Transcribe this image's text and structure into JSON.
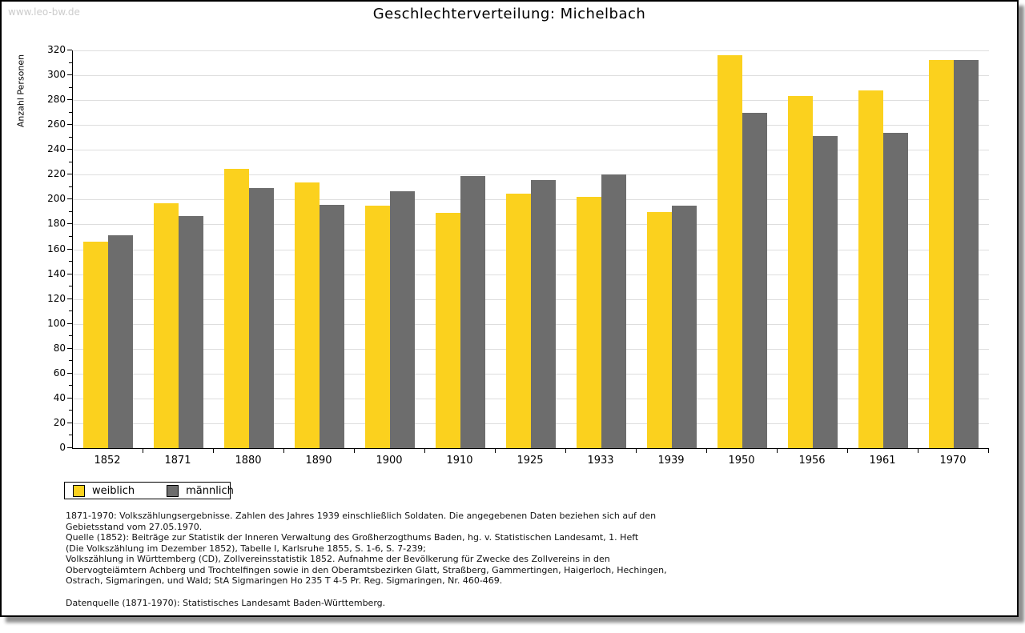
{
  "watermark": "www.leo-bw.de",
  "chart_data": {
    "type": "bar",
    "title": "Geschlechterverteilung: Michelbach",
    "xlabel": "",
    "ylabel": "Anzahl Personen",
    "ylim": [
      0,
      320
    ],
    "ytick_step": 20,
    "ytick_minor_step": 10,
    "grid": true,
    "legend_position": "bottom-left",
    "categories": [
      "1852",
      "1871",
      "1880",
      "1890",
      "1900",
      "1910",
      "1925",
      "1933",
      "1939",
      "1950",
      "1956",
      "1961",
      "1970"
    ],
    "series": [
      {
        "name": "weiblich",
        "color": "#fbd11e",
        "values": [
          166,
          197,
          225,
          214,
          195,
          189,
          205,
          202,
          190,
          316,
          283,
          288,
          312
        ]
      },
      {
        "name": "männlich",
        "color": "#6d6d6d",
        "values": [
          171,
          187,
          209,
          196,
          207,
          219,
          216,
          220,
          195,
          270,
          251,
          254,
          312
        ]
      }
    ],
    "colors": {
      "gridline": "#dedede",
      "axis": "#000000"
    }
  },
  "footnote_lines": [
    "1871-1970: Volkszählungsergebnisse. Zahlen des Jahres 1939 einschließlich Soldaten. Die angegebenen Daten beziehen sich auf den",
    "Gebietsstand vom 27.05.1970.",
    "Quelle (1852): Beiträge zur Statistik der Inneren Verwaltung des Großherzogthums Baden, hg. v. Statistischen Landesamt, 1. Heft",
    "(Die Volkszählung im Dezember 1852), Tabelle I, Karlsruhe 1855, S. 1-6, S. 7-239;",
    "Volkszählung in Württemberg (CD), Zollvereinsstatistik 1852. Aufnahme der Bevölkerung für Zwecke des Zollvereins in den",
    "Obervogteiämtern Achberg und Trochtelfingen sowie in den Oberamtsbezirken Glatt, Straßberg, Gammertingen, Haigerloch, Hechingen,",
    "Ostrach, Sigmaringen, und Wald; StA Sigmaringen Ho 235 T 4-5 Pr. Reg. Sigmaringen, Nr. 460-469."
  ],
  "datasource": "Datenquelle (1871-1970): Statistisches Landesamt Baden-Württemberg."
}
